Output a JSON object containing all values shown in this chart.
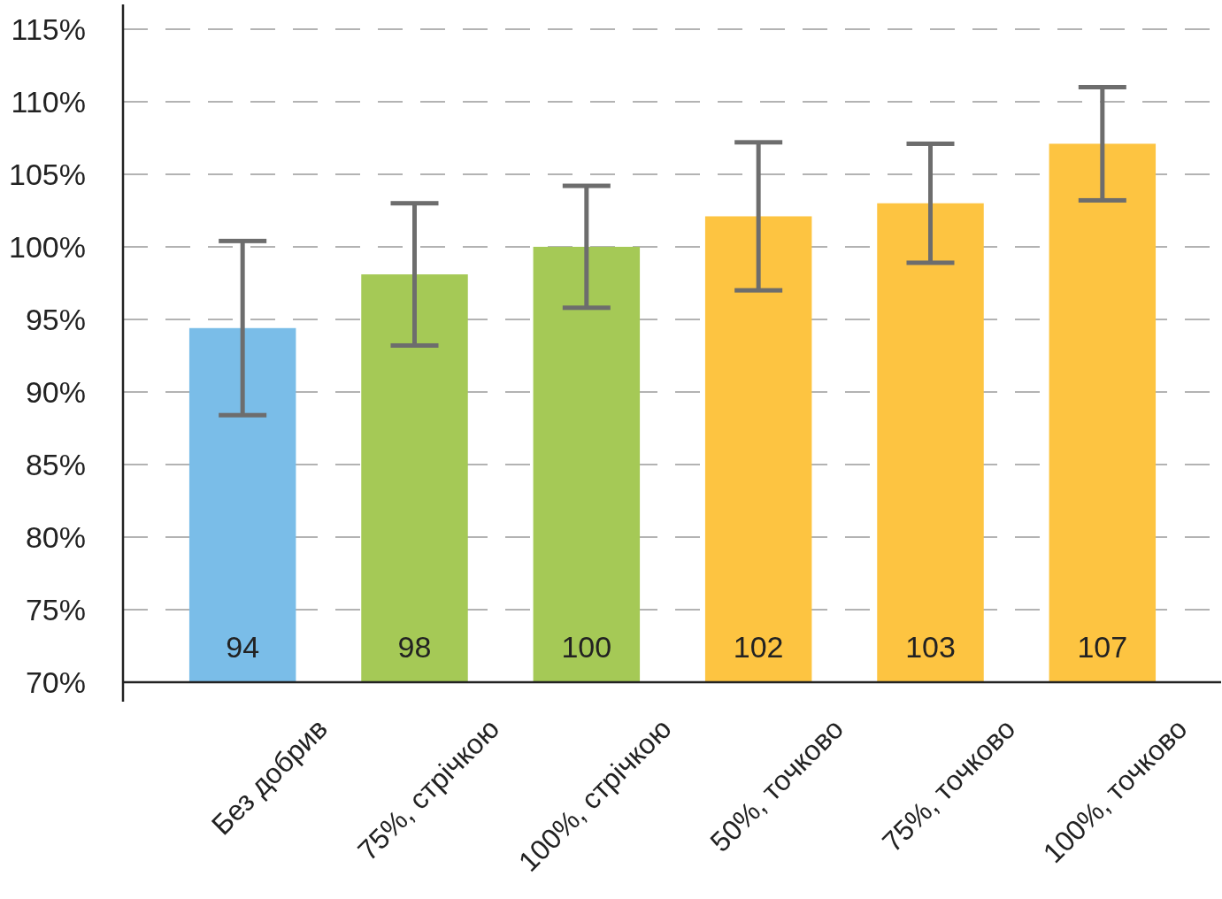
{
  "chart_data": {
    "type": "bar",
    "categories": [
      "Без добрив",
      "75%, стрічкою",
      "100%, стрічкою",
      "50%, точково",
      "75%, точково",
      "100%, точково"
    ],
    "values": [
      94.4,
      98.1,
      100,
      102.1,
      103,
      107.1
    ],
    "value_labels": [
      "94",
      "98",
      "100",
      "102",
      "103",
      "107"
    ],
    "colors": [
      "#7abde8",
      "#a5c956",
      "#a5c956",
      "#fdc441",
      "#fdc441",
      "#fdc441"
    ],
    "errors": [
      6,
      4.9,
      4.2,
      5.1,
      4.1,
      3.9
    ],
    "ylim": [
      70,
      116.7
    ],
    "yticks": [
      {
        "value": 70,
        "label": "70%"
      },
      {
        "value": 75,
        "label": "75%"
      },
      {
        "value": 80,
        "label": "80%"
      },
      {
        "value": 85,
        "label": "85%"
      },
      {
        "value": 90,
        "label": "90%"
      },
      {
        "value": 95,
        "label": "95%"
      },
      {
        "value": 100,
        "label": "100%"
      },
      {
        "value": 105,
        "label": "105%"
      },
      {
        "value": 110,
        "label": "110%"
      },
      {
        "value": 115,
        "label": "115%"
      }
    ],
    "grid": "y"
  }
}
